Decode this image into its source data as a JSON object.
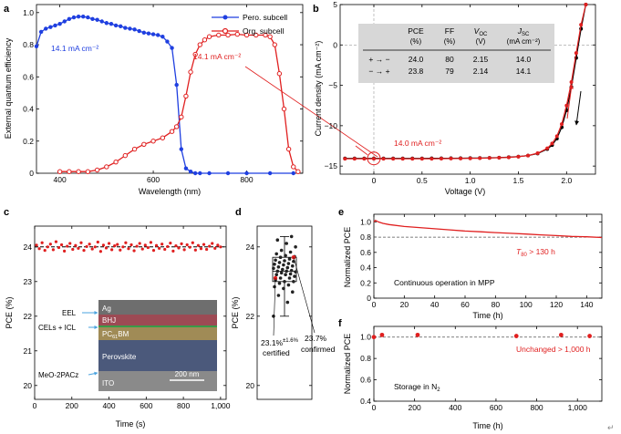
{
  "panel_labels": {
    "a": "a",
    "b": "b",
    "c": "c",
    "d": "d",
    "e": "e",
    "f": "f"
  },
  "colors": {
    "pero": "#1f3fe0",
    "org": "#e01f1f",
    "table_bg": "#d7d7d7",
    "sem_dark": "#3a3a3a"
  },
  "chart_data": [
    {
      "id": "a",
      "type": "line",
      "title": "",
      "xlabel": "Wavelength (nm)",
      "ylabel": "External quantum efficiency",
      "xlim": [
        350,
        920
      ],
      "ylim": [
        0,
        1.05
      ],
      "xticks": [
        400,
        600,
        800
      ],
      "yticks": [
        0,
        0.2,
        0.4,
        0.6,
        0.8,
        1.0
      ],
      "xtick_labels": [
        "400",
        "600",
        "800"
      ],
      "ytick_labels": [
        "0",
        "0.2",
        "0.4",
        "0.6",
        "0.8",
        "1.0"
      ],
      "legend": [
        "Pero. subcell",
        "Org. subcell"
      ],
      "annotations": [
        "14.1 mA cm⁻²",
        "14.1 mA cm⁻²"
      ],
      "series": [
        {
          "name": "Pero. subcell",
          "x": [
            350,
            360,
            370,
            380,
            390,
            400,
            410,
            420,
            430,
            440,
            450,
            460,
            470,
            480,
            490,
            500,
            510,
            520,
            530,
            540,
            550,
            560,
            570,
            580,
            590,
            600,
            610,
            620,
            630,
            640,
            650,
            660,
            670,
            680,
            690,
            700,
            720,
            760,
            800,
            850,
            900
          ],
          "y": [
            0.79,
            0.88,
            0.9,
            0.91,
            0.92,
            0.93,
            0.945,
            0.96,
            0.97,
            0.975,
            0.975,
            0.97,
            0.96,
            0.955,
            0.945,
            0.935,
            0.93,
            0.92,
            0.915,
            0.905,
            0.9,
            0.895,
            0.885,
            0.875,
            0.87,
            0.865,
            0.86,
            0.85,
            0.82,
            0.78,
            0.55,
            0.15,
            0.03,
            0.01,
            0.0,
            0.0,
            0.0,
            0.0,
            0.0,
            0.0,
            0.0
          ]
        },
        {
          "name": "Org. subcell",
          "x": [
            400,
            420,
            440,
            460,
            480,
            500,
            520,
            540,
            560,
            580,
            600,
            620,
            640,
            650,
            660,
            670,
            680,
            690,
            700,
            710,
            720,
            740,
            760,
            780,
            800,
            820,
            840,
            850,
            860,
            870,
            880,
            890,
            900,
            910
          ],
          "y": [
            0.01,
            0.01,
            0.01,
            0.01,
            0.02,
            0.04,
            0.07,
            0.11,
            0.15,
            0.18,
            0.2,
            0.22,
            0.26,
            0.29,
            0.35,
            0.48,
            0.63,
            0.74,
            0.8,
            0.83,
            0.85,
            0.86,
            0.86,
            0.865,
            0.86,
            0.86,
            0.86,
            0.85,
            0.8,
            0.62,
            0.4,
            0.15,
            0.04,
            0.01
          ]
        }
      ]
    },
    {
      "id": "b",
      "type": "line",
      "xlabel": "Voltage (V)",
      "ylabel": "Current density (mA cm⁻²)",
      "xlim": [
        -0.35,
        2.3
      ],
      "ylim": [
        -16,
        5
      ],
      "xticks": [
        0,
        0.5,
        1.0,
        1.5,
        2.0
      ],
      "yticks": [
        -15,
        -10,
        -5,
        0,
        5
      ],
      "xtick_labels": [
        "0",
        "0.5",
        "1.0",
        "1.5",
        "2.0"
      ],
      "ytick_labels": [
        "−15",
        "−10",
        "−5",
        "0",
        "5"
      ],
      "annotations": [
        "14.0 mA cm⁻²"
      ],
      "table": {
        "headers": [
          "",
          "PCE",
          "FF",
          "V_OC",
          "J_SC"
        ],
        "header_units": [
          "",
          "(%)",
          "(%)",
          "(V)",
          "(mA cm⁻²)"
        ],
        "rows": [
          [
            "+ → −",
            "24.0",
            "80",
            "2.15",
            "14.0"
          ],
          [
            "− → +",
            "23.8",
            "79",
            "2.14",
            "14.1"
          ]
        ]
      },
      "series": [
        {
          "name": "forward",
          "color": "black",
          "x": [
            -0.3,
            -0.2,
            -0.1,
            0,
            0.1,
            0.2,
            0.3,
            0.4,
            0.5,
            0.6,
            0.7,
            0.8,
            0.9,
            1.0,
            1.1,
            1.2,
            1.3,
            1.4,
            1.5,
            1.6,
            1.7,
            1.8,
            1.85,
            1.9,
            1.95,
            2.0,
            2.05,
            2.1,
            2.15,
            2.2
          ],
          "y": [
            -14.05,
            -14.05,
            -14.05,
            -14.05,
            -14.05,
            -14.05,
            -14.05,
            -14.05,
            -14.05,
            -14.04,
            -14.04,
            -14.03,
            -14.02,
            -14.01,
            -14.0,
            -13.98,
            -13.95,
            -13.9,
            -13.82,
            -13.7,
            -13.45,
            -12.9,
            -12.4,
            -11.6,
            -10.2,
            -8.1,
            -5.2,
            -1.6,
            2.0,
            5.0
          ]
        },
        {
          "name": "reverse",
          "color": "red",
          "x": [
            -0.3,
            -0.2,
            -0.1,
            0,
            0.1,
            0.2,
            0.3,
            0.4,
            0.5,
            0.6,
            0.7,
            0.8,
            0.9,
            1.0,
            1.1,
            1.2,
            1.3,
            1.4,
            1.5,
            1.6,
            1.7,
            1.8,
            1.85,
            1.9,
            1.95,
            2.0,
            2.05,
            2.1,
            2.15,
            2.2
          ],
          "y": [
            -14.1,
            -14.1,
            -14.1,
            -14.1,
            -14.1,
            -14.1,
            -14.1,
            -14.1,
            -14.09,
            -14.09,
            -14.08,
            -14.07,
            -14.06,
            -14.05,
            -14.03,
            -14.0,
            -13.97,
            -13.92,
            -13.84,
            -13.7,
            -13.4,
            -12.8,
            -12.2,
            -11.3,
            -9.8,
            -7.5,
            -4.6,
            -1.0,
            2.5,
            5.0
          ]
        }
      ]
    },
    {
      "id": "c",
      "type": "scatter",
      "xlabel": "Time (s)",
      "ylabel": "PCE (%)",
      "xlim": [
        0,
        1030
      ],
      "ylim": [
        19.6,
        24.6
      ],
      "xticks": [
        0,
        200,
        400,
        600,
        800,
        1000
      ],
      "yticks": [
        20,
        21,
        22,
        23,
        24
      ],
      "xtick_labels": [
        "0",
        "200",
        "400",
        "600",
        "800",
        "1,000"
      ],
      "ytick_labels": [
        "20",
        "21",
        "22",
        "23",
        "24"
      ],
      "mean_line": 24.0,
      "series": [
        {
          "name": "PCE",
          "x": [
            10,
            25,
            40,
            55,
            70,
            85,
            100,
            115,
            130,
            145,
            160,
            175,
            190,
            205,
            220,
            235,
            250,
            265,
            280,
            295,
            310,
            325,
            340,
            355,
            370,
            385,
            400,
            415,
            430,
            445,
            460,
            475,
            490,
            505,
            520,
            535,
            550,
            565,
            580,
            595,
            610,
            625,
            640,
            655,
            670,
            685,
            700,
            715,
            730,
            745,
            760,
            775,
            790,
            805,
            820,
            835,
            850,
            865,
            880,
            895,
            910,
            925,
            940,
            955,
            970,
            985,
            1000
          ],
          "y": [
            24.05,
            23.95,
            24.12,
            23.9,
            24.0,
            24.08,
            23.92,
            24.15,
            23.98,
            24.06,
            23.88,
            24.02,
            24.1,
            23.93,
            24.04,
            23.96,
            24.12,
            23.9,
            24.01,
            24.08,
            23.94,
            24.0,
            24.14,
            23.87,
            24.05,
            23.97,
            24.1,
            23.92,
            24.03,
            24.07,
            23.91,
            24.0,
            24.12,
            23.95,
            24.06,
            23.89,
            24.02,
            24.1,
            23.94,
            24.05,
            23.98,
            24.13,
            23.9,
            24.04,
            23.96,
            24.08,
            23.93,
            24.01,
            24.11,
            23.88,
            24.03,
            23.97,
            24.09,
            23.92,
            24.06,
            23.99,
            24.12,
            23.91,
            24.04,
            23.95,
            24.07,
            23.93,
            24.02,
            24.1,
            23.96,
            24.05,
            24.0
          ]
        }
      ],
      "inset_labels": {
        "left": [
          "EEL",
          "CELs + ICL",
          "MeO-2PACz"
        ],
        "layers": [
          "Ag",
          "BHJ",
          "PC₆₁BM",
          "Perovskite",
          "ITO"
        ],
        "scale_bar": "200 nm"
      }
    },
    {
      "id": "d",
      "type": "scatter",
      "ylabel": "PCE (%)",
      "ylim": [
        19.6,
        24.6
      ],
      "yticks": [
        20,
        22,
        24
      ],
      "ytick_labels": [
        "20",
        "22",
        "24"
      ],
      "box": {
        "min": 22.0,
        "q1": 23.0,
        "median": 23.3,
        "q3": 23.7,
        "max": 24.3
      },
      "annotations": [
        "23.1%",
        "±1.6%",
        "certified",
        "23.7%",
        "confirmed"
      ],
      "series": [
        {
          "name": "devices",
          "values": [
            22.0,
            22.4,
            22.6,
            22.7,
            22.8,
            22.85,
            22.9,
            22.95,
            23.0,
            23.0,
            23.05,
            23.1,
            23.1,
            23.15,
            23.2,
            23.2,
            23.22,
            23.25,
            23.28,
            23.3,
            23.3,
            23.32,
            23.35,
            23.38,
            23.4,
            23.42,
            23.45,
            23.48,
            23.5,
            23.52,
            23.55,
            23.58,
            23.6,
            23.62,
            23.65,
            23.7,
            23.72,
            23.75,
            23.8,
            23.85,
            23.9,
            24.0,
            24.1,
            24.2,
            24.3
          ]
        }
      ]
    },
    {
      "id": "e",
      "type": "line",
      "xlabel": "Time (h)",
      "ylabel": "Normalized PCE",
      "xlim": [
        0,
        150
      ],
      "ylim": [
        0,
        1.1
      ],
      "xticks": [
        0,
        20,
        40,
        60,
        80,
        100,
        120,
        140
      ],
      "yticks": [
        0,
        0.2,
        0.4,
        0.6,
        0.8,
        1.0
      ],
      "xtick_labels": [
        "0",
        "20",
        "40",
        "60",
        "80",
        "100",
        "120",
        "140"
      ],
      "ytick_labels": [
        "0",
        "0.2",
        "0.4",
        "0.6",
        "0.8",
        "1.0"
      ],
      "reference_line": 0.8,
      "annotations": [
        "T₈₀ > 130 h",
        "Continuous operation in MPP"
      ],
      "series": [
        {
          "name": "MPP",
          "x": [
            0,
            1,
            3,
            6,
            10,
            20,
            30,
            40,
            50,
            60,
            70,
            80,
            90,
            100,
            110,
            120,
            130,
            140,
            150
          ],
          "y": [
            1.0,
            1.02,
            1.0,
            0.98,
            0.965,
            0.94,
            0.925,
            0.91,
            0.895,
            0.88,
            0.87,
            0.86,
            0.85,
            0.84,
            0.83,
            0.82,
            0.81,
            0.805,
            0.795
          ]
        }
      ]
    },
    {
      "id": "f",
      "type": "scatter",
      "xlabel": "Time (h)",
      "ylabel": "Normalized PCE",
      "xlim": [
        0,
        1120
      ],
      "ylim": [
        0.4,
        1.1
      ],
      "xticks": [
        0,
        200,
        400,
        600,
        800,
        1000
      ],
      "yticks": [
        0.4,
        0.6,
        0.8,
        1.0
      ],
      "xtick_labels": [
        "0",
        "200",
        "400",
        "600",
        "800",
        "1,000"
      ],
      "ytick_labels": [
        "0.4",
        "0.6",
        "0.8",
        "1.0"
      ],
      "reference_line": 1.0,
      "annotations": [
        "Unchanged > 1,000 h",
        "Storage in N₂"
      ],
      "series": [
        {
          "name": "storage",
          "x": [
            0,
            40,
            215,
            700,
            920,
            1060
          ],
          "y": [
            1.0,
            1.02,
            1.02,
            1.01,
            1.02,
            1.01
          ]
        }
      ]
    }
  ]
}
